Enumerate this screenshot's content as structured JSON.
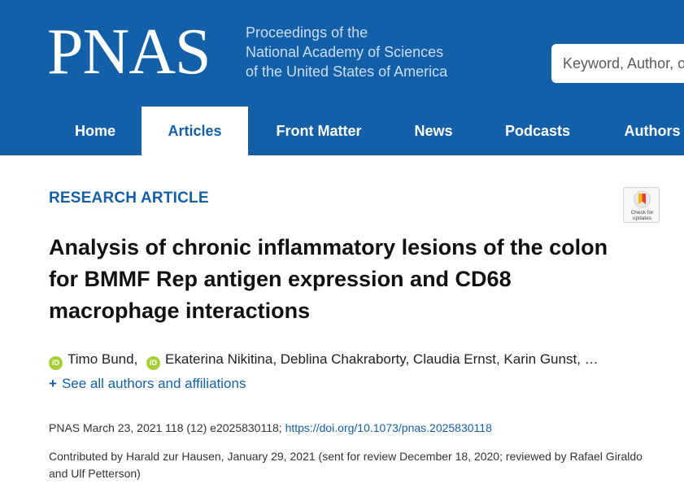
{
  "header": {
    "logo": "PNAS",
    "tagline": [
      "Proceedings of the",
      "National Academy of Sciences",
      "of the United States of America"
    ],
    "search_placeholder": "Keyword, Author, or DOI"
  },
  "nav": [
    {
      "label": "Home",
      "active": false
    },
    {
      "label": "Articles",
      "active": true
    },
    {
      "label": "Front Matter",
      "active": false
    },
    {
      "label": "News",
      "active": false
    },
    {
      "label": "Podcasts",
      "active": false
    },
    {
      "label": "Authors",
      "active": false
    }
  ],
  "article": {
    "type": "RESEARCH ARTICLE",
    "badge": "Check for updates",
    "title": "Analysis of chronic inflammatory lesions of the colon for BMMF Rep antigen expression and CD68 macrophage interactions",
    "authors": {
      "author1": "Timo Bund,",
      "author2": "Ekaterina Nikitina,",
      "rest": "Deblina Chakraborty,  Claudia Ernst,  Karin Gunst,  …"
    },
    "see_all": "See all authors and affiliations",
    "citation": "PNAS March 23, 2021 118 (12) e2025830118;",
    "doi": "https://doi.org/10.1073/pnas.2025830118",
    "contributed": "Contributed by Harald zur Hausen, January 29, 2021 (sent for review December 18, 2020; reviewed by Rafael Giraldo and Ulf Petterson)"
  },
  "colors": {
    "brand": "#1460a8",
    "orcid": "#a6ce39"
  }
}
